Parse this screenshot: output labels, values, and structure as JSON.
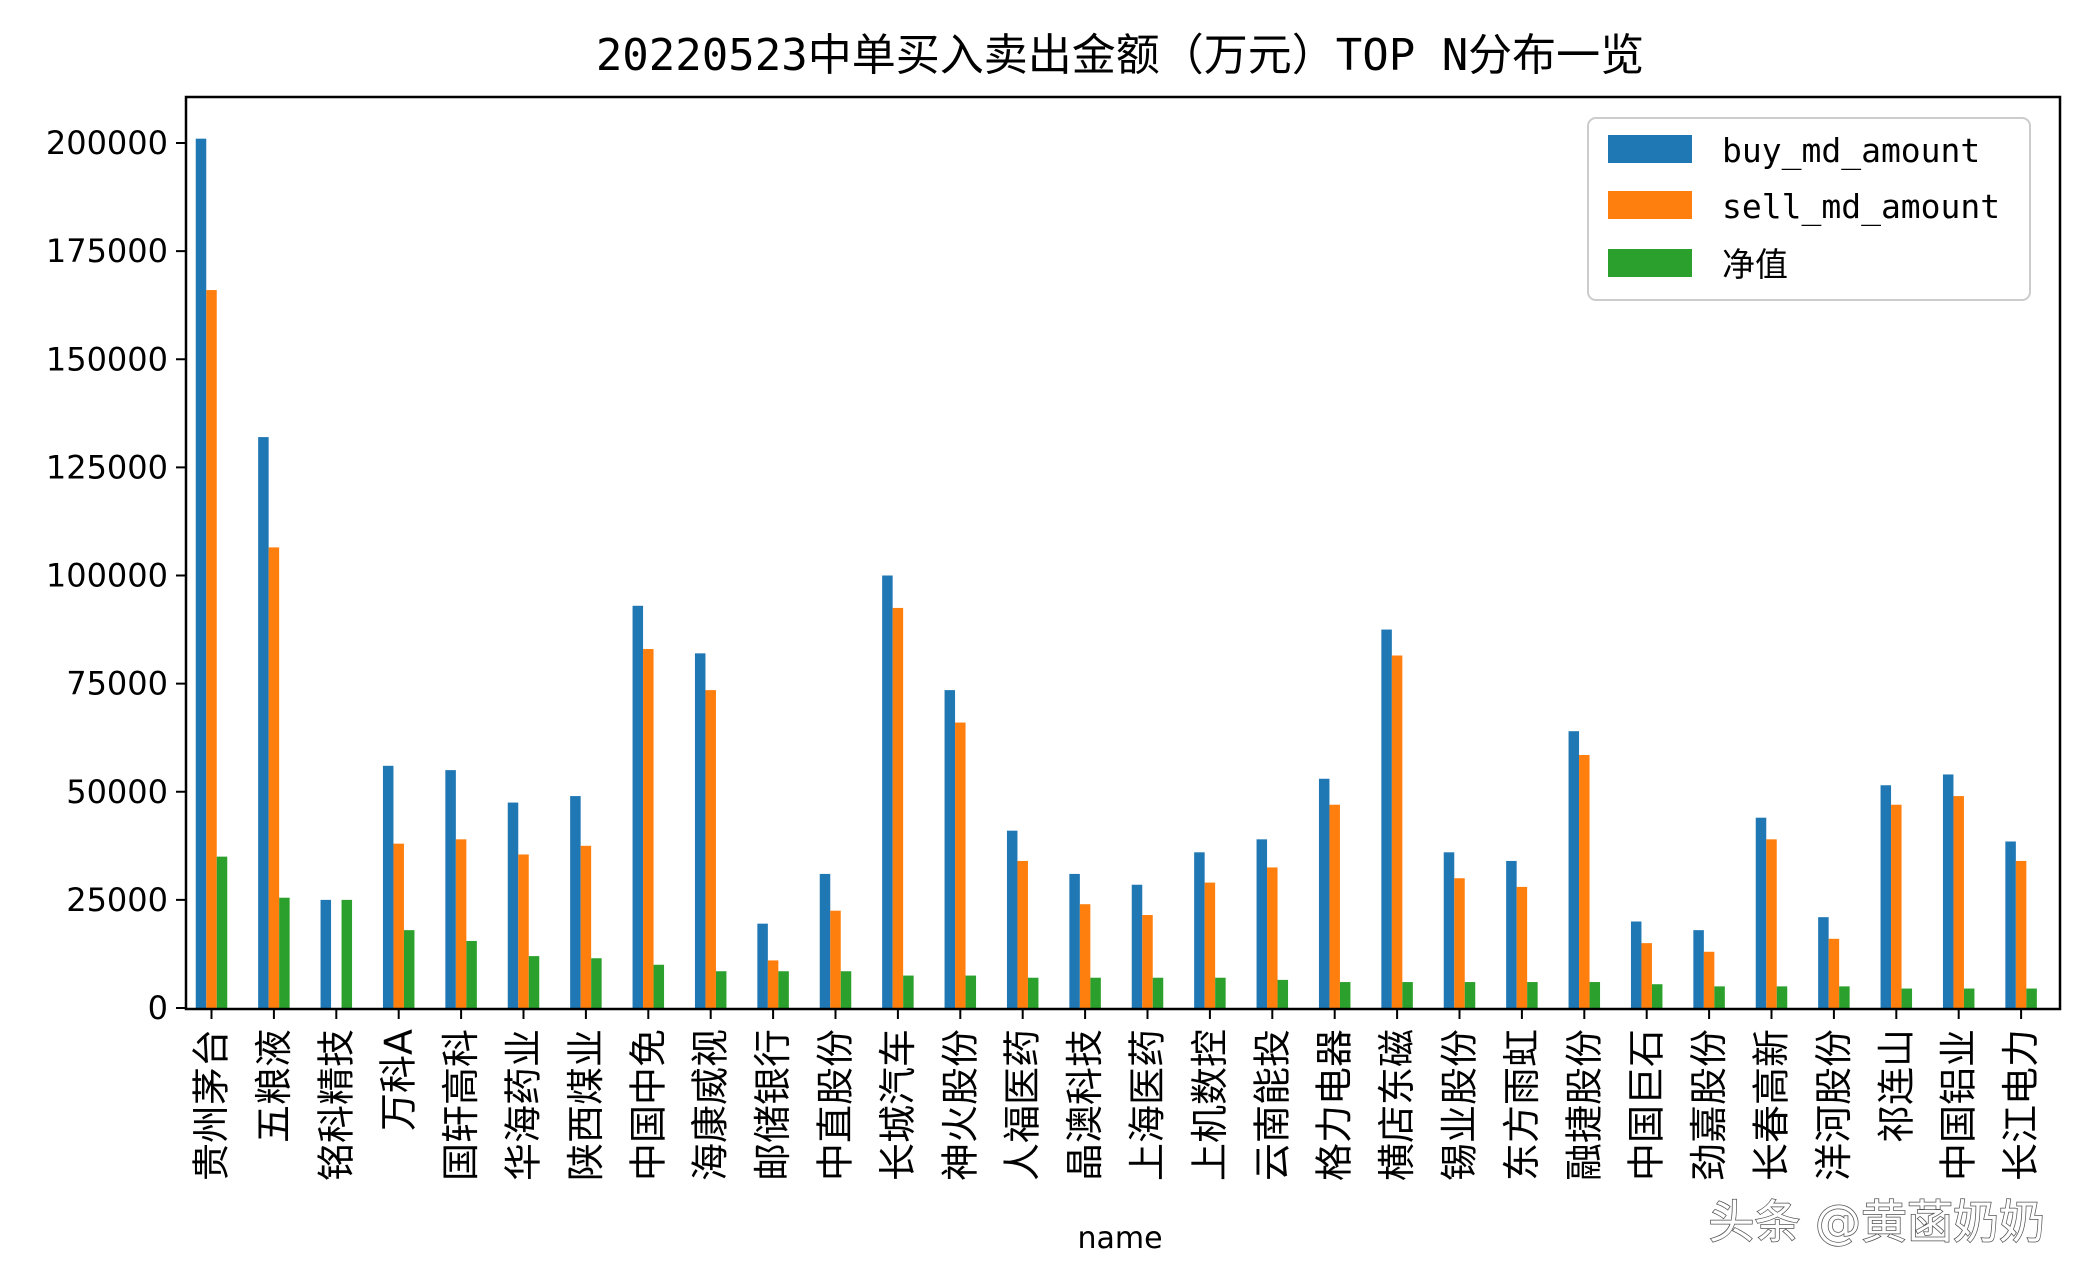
{
  "chart_data": {
    "type": "bar",
    "title": "20220523中单买入卖出金额（万元）TOP N分布一览",
    "xlabel": "name",
    "ylabel": "",
    "ylim": [
      0,
      210000
    ],
    "yticks": [
      0,
      25000,
      50000,
      75000,
      100000,
      125000,
      150000,
      175000,
      200000
    ],
    "grid": false,
    "legend_position": "top-right",
    "categories": [
      "贵州茅台",
      "五粮液",
      "铭科精技",
      "万科A",
      "国轩高科",
      "华海药业",
      "陕西煤业",
      "中国中免",
      "海康威视",
      "邮储银行",
      "中直股份",
      "长城汽车",
      "神火股份",
      "人福医药",
      "晶澳科技",
      "上海医药",
      "上机数控",
      "云南能投",
      "格力电器",
      "横店东磁",
      "锡业股份",
      "东方雨虹",
      "融捷股份",
      "中国巨石",
      "劲嘉股份",
      "长春高新",
      "洋河股份",
      "祁连山",
      "中国铝业",
      "长江电力"
    ],
    "series": [
      {
        "name": "buy_md_amount",
        "color": "#1f77b4",
        "values": [
          201000,
          132000,
          25000,
          56000,
          55000,
          47500,
          49000,
          93000,
          82000,
          19500,
          31000,
          100000,
          73500,
          41000,
          31000,
          28500,
          36000,
          39000,
          53000,
          87500,
          36000,
          34000,
          64000,
          20000,
          18000,
          44000,
          21000,
          51500,
          54000,
          38500
        ]
      },
      {
        "name": "sell_md_amount",
        "color": "#ff7f0e",
        "values": [
          166000,
          106500,
          0,
          38000,
          39000,
          35500,
          37500,
          83000,
          73500,
          11000,
          22500,
          92500,
          66000,
          34000,
          24000,
          21500,
          29000,
          32500,
          47000,
          81500,
          30000,
          28000,
          58500,
          15000,
          13000,
          39000,
          16000,
          47000,
          49000,
          34000
        ]
      },
      {
        "name": "净值",
        "color": "#2ca02c",
        "values": [
          35000,
          25500,
          25000,
          18000,
          15500,
          12000,
          11500,
          10000,
          8500,
          8500,
          8500,
          7500,
          7500,
          7000,
          7000,
          7000,
          7000,
          6500,
          6000,
          6000,
          6000,
          6000,
          6000,
          5500,
          5000,
          5000,
          5000,
          4500,
          4500,
          4500
        ]
      }
    ]
  },
  "watermark": "头条 @黄菡奶奶"
}
